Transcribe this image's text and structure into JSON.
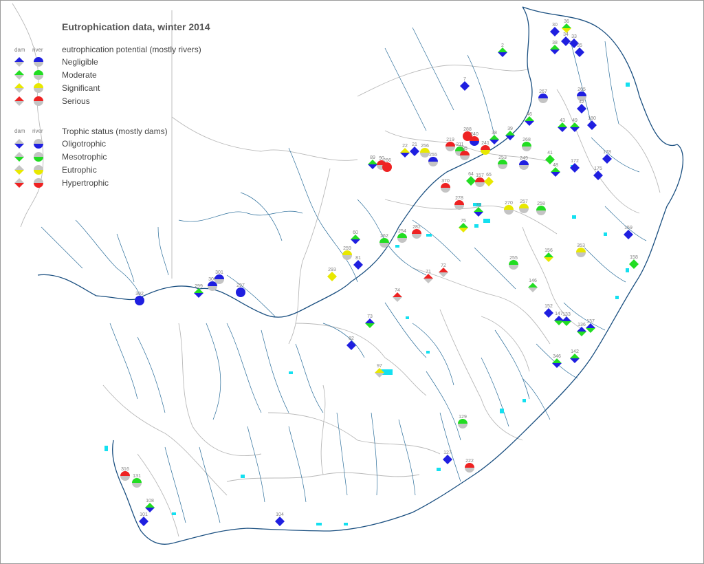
{
  "title": "Eutrophication data, winter 2014",
  "legend": {
    "col_dam": "dam",
    "col_river": "river",
    "potential": {
      "heading": "eutrophication potential (mostly rivers)",
      "items": [
        {
          "label": "Negligible",
          "color": "#1f1fe0"
        },
        {
          "label": "Moderate",
          "color": "#22dd22"
        },
        {
          "label": "Significant",
          "color": "#e8e800"
        },
        {
          "label": "Serious",
          "color": "#ee2222"
        }
      ]
    },
    "trophic": {
      "heading": "Trophic status (mostly dams)",
      "items": [
        {
          "label": "Oligotrophic",
          "color": "#1f1fe0"
        },
        {
          "label": "Mesotrophic",
          "color": "#22dd22"
        },
        {
          "label": "Eutrophic",
          "color": "#e8e800"
        },
        {
          "label": "Hypertrophic",
          "color": "#ee2222"
        }
      ]
    }
  },
  "colors": {
    "river": "#2a6d9a",
    "border": "#b8b8b8",
    "coast": "#1a4f80",
    "water": "#14e0f0",
    "base": "#c4c4c4"
  },
  "sites": [
    {
      "label": "30",
      "shape": "dam",
      "top": "blue",
      "bottom": "blue"
    },
    {
      "label": "36",
      "shape": "dam",
      "top": "green",
      "bottom": "yellow"
    },
    {
      "label": "34",
      "shape": "dam",
      "top": "blue",
      "bottom": "blue"
    },
    {
      "label": "33",
      "shape": "dam",
      "top": "blue",
      "bottom": "blue"
    },
    {
      "label": "35",
      "shape": "dam",
      "top": "blue",
      "bottom": "blue"
    },
    {
      "label": "38",
      "shape": "dam",
      "top": "green",
      "bottom": "blue"
    },
    {
      "label": "2",
      "shape": "dam",
      "top": "green",
      "bottom": "blue"
    },
    {
      "label": "7",
      "shape": "dam",
      "top": "blue",
      "bottom": "blue"
    },
    {
      "label": "267",
      "shape": "river",
      "top": "blue",
      "bottom": "grey"
    },
    {
      "label": "265",
      "shape": "river",
      "top": "blue",
      "bottom": "grey"
    },
    {
      "label": "42",
      "shape": "dam",
      "top": "blue",
      "bottom": "blue"
    },
    {
      "label": "46",
      "shape": "dam",
      "top": "green",
      "bottom": "blue"
    },
    {
      "label": "43",
      "shape": "dam",
      "top": "green",
      "bottom": "blue"
    },
    {
      "label": "49",
      "shape": "dam",
      "top": "green",
      "bottom": "blue"
    },
    {
      "label": "180",
      "shape": "dam",
      "top": "blue",
      "bottom": "blue"
    },
    {
      "label": "39",
      "shape": "dam",
      "top": "green",
      "bottom": "blue"
    },
    {
      "label": "38",
      "shape": "dam",
      "top": "green",
      "bottom": "blue"
    },
    {
      "label": "268",
      "shape": "river",
      "top": "green",
      "bottom": "grey"
    },
    {
      "label": "41",
      "shape": "dam",
      "top": "green",
      "bottom": "green"
    },
    {
      "label": "48",
      "shape": "dam",
      "top": "green",
      "bottom": "blue"
    },
    {
      "label": "172",
      "shape": "dam",
      "top": "blue",
      "bottom": "blue"
    },
    {
      "label": "175",
      "shape": "dam",
      "top": "blue",
      "bottom": "blue"
    },
    {
      "label": "178",
      "shape": "dam",
      "top": "blue",
      "bottom": "blue"
    },
    {
      "label": "22",
      "shape": "dam",
      "top": "yellow",
      "bottom": "blue"
    },
    {
      "label": "21",
      "shape": "dam",
      "top": "blue",
      "bottom": "blue"
    },
    {
      "label": "256",
      "shape": "river",
      "top": "yellow",
      "bottom": "grey"
    },
    {
      "label": "255",
      "shape": "river",
      "top": "blue",
      "bottom": "grey"
    },
    {
      "label": "89",
      "shape": "dam",
      "top": "green",
      "bottom": "blue"
    },
    {
      "label": "90",
      "shape": "river",
      "top": "red",
      "bottom": "grey"
    },
    {
      "label": "266",
      "shape": "river",
      "top": "red",
      "bottom": "red"
    },
    {
      "label": "219",
      "shape": "river",
      "top": "red",
      "bottom": "grey"
    },
    {
      "label": "211",
      "shape": "river",
      "top": "green",
      "bottom": "grey"
    },
    {
      "label": "288",
      "shape": "river",
      "top": "red",
      "bottom": "red"
    },
    {
      "label": "240",
      "shape": "river",
      "top": "red",
      "bottom": "blue"
    },
    {
      "label": "95",
      "shape": "river",
      "top": "red",
      "bottom": "grey"
    },
    {
      "label": "241",
      "shape": "river",
      "top": "red",
      "bottom": "yellow"
    },
    {
      "label": "253",
      "shape": "river",
      "top": "green",
      "bottom": "grey"
    },
    {
      "label": "249",
      "shape": "river",
      "top": "blue",
      "bottom": "grey"
    },
    {
      "label": "64",
      "shape": "dam",
      "top": "green",
      "bottom": "green"
    },
    {
      "label": "157",
      "shape": "river",
      "top": "red",
      "bottom": "grey"
    },
    {
      "label": "65",
      "shape": "dam",
      "top": "yellow",
      "bottom": "yellow"
    },
    {
      "label": "370",
      "shape": "river",
      "top": "red",
      "bottom": "grey"
    },
    {
      "label": "278",
      "shape": "river",
      "top": "red",
      "bottom": "grey"
    },
    {
      "label": "270",
      "shape": "river",
      "top": "yellow",
      "bottom": "grey"
    },
    {
      "label": "257",
      "shape": "river",
      "top": "yellow",
      "bottom": "grey"
    },
    {
      "label": "258",
      "shape": "river",
      "top": "green",
      "bottom": "grey"
    },
    {
      "label": "76",
      "shape": "dam",
      "top": "green",
      "bottom": "blue"
    },
    {
      "label": "75",
      "shape": "dam",
      "top": "green",
      "bottom": "yellow"
    },
    {
      "label": "159",
      "shape": "dam",
      "top": "blue",
      "bottom": "blue"
    },
    {
      "label": "60",
      "shape": "dam",
      "top": "green",
      "bottom": "blue"
    },
    {
      "label": "254",
      "shape": "river",
      "top": "green",
      "bottom": "grey"
    },
    {
      "label": "282",
      "shape": "river",
      "top": "red",
      "bottom": "grey"
    },
    {
      "label": "262",
      "shape": "river",
      "top": "green",
      "bottom": "grey"
    },
    {
      "label": "81",
      "shape": "dam",
      "top": "blue",
      "bottom": "blue"
    },
    {
      "label": "353",
      "shape": "river",
      "top": "yellow",
      "bottom": "grey"
    },
    {
      "label": "156",
      "shape": "dam",
      "top": "green",
      "bottom": "yellow"
    },
    {
      "label": "158",
      "shape": "dam",
      "top": "green",
      "bottom": "green"
    },
    {
      "label": "255",
      "shape": "river",
      "top": "green",
      "bottom": "grey"
    },
    {
      "label": "72",
      "shape": "dam",
      "top": "red",
      "bottom": "grey"
    },
    {
      "label": "71",
      "shape": "dam",
      "top": "red",
      "bottom": "grey"
    },
    {
      "label": "74",
      "shape": "dam",
      "top": "red",
      "bottom": "grey"
    },
    {
      "label": "146",
      "shape": "dam",
      "top": "green",
      "bottom": "grey"
    },
    {
      "label": "302",
      "shape": "river",
      "top": "blue",
      "bottom": "blue"
    },
    {
      "label": "299",
      "shape": "dam",
      "top": "green",
      "bottom": "blue"
    },
    {
      "label": "300",
      "shape": "river",
      "top": "blue",
      "bottom": "grey"
    },
    {
      "label": "301",
      "shape": "river",
      "top": "blue",
      "bottom": "grey"
    },
    {
      "label": "297",
      "shape": "river",
      "top": "blue",
      "bottom": "blue"
    },
    {
      "label": "293",
      "shape": "dam",
      "top": "yellow",
      "bottom": "yellow"
    },
    {
      "label": "259",
      "shape": "river",
      "top": "yellow",
      "bottom": "grey"
    },
    {
      "label": "152",
      "shape": "dam",
      "top": "blue",
      "bottom": "blue"
    },
    {
      "label": "147",
      "shape": "dam",
      "top": "blue",
      "bottom": "green"
    },
    {
      "label": "133",
      "shape": "dam",
      "top": "blue",
      "bottom": "green"
    },
    {
      "label": "137",
      "shape": "dam",
      "top": "blue",
      "bottom": "green"
    },
    {
      "label": "136",
      "shape": "dam",
      "top": "blue",
      "bottom": "green"
    },
    {
      "label": "73",
      "shape": "dam",
      "top": "blue",
      "bottom": "green"
    },
    {
      "label": "82",
      "shape": "dam",
      "top": "blue",
      "bottom": "blue"
    },
    {
      "label": "346",
      "shape": "dam",
      "top": "green",
      "bottom": "blue"
    },
    {
      "label": "142",
      "shape": "dam",
      "top": "green",
      "bottom": "blue"
    },
    {
      "label": "97",
      "shape": "dam",
      "top": "yellow",
      "bottom": "grey"
    },
    {
      "label": "129",
      "shape": "river",
      "top": "green",
      "bottom": "grey"
    },
    {
      "label": "127",
      "shape": "dam",
      "top": "blue",
      "bottom": "blue"
    },
    {
      "label": "222",
      "shape": "river",
      "top": "red",
      "bottom": "grey"
    },
    {
      "label": "316",
      "shape": "river",
      "top": "red",
      "bottom": "grey"
    },
    {
      "label": "131",
      "shape": "river",
      "top": "green",
      "bottom": "grey"
    },
    {
      "label": "108",
      "shape": "dam",
      "top": "green",
      "bottom": "blue"
    },
    {
      "label": "101",
      "shape": "dam",
      "top": "blue",
      "bottom": "blue"
    },
    {
      "label": "104",
      "shape": "dam",
      "top": "blue",
      "bottom": "blue"
    }
  ]
}
